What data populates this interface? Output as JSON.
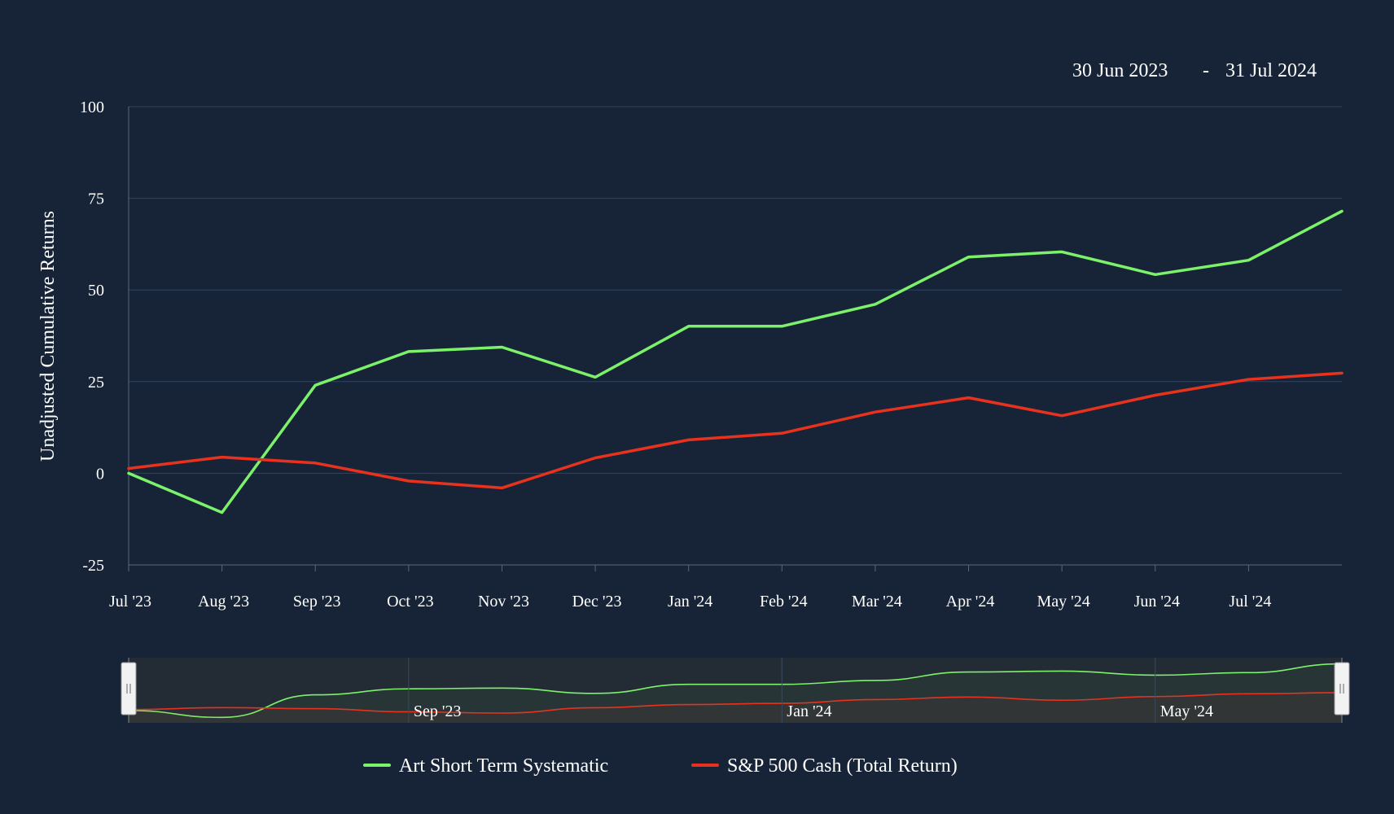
{
  "range_selector": {
    "start": "30 Jun 2023",
    "separator": "-",
    "end": "31 Jul 2024"
  },
  "chart_data": {
    "type": "line",
    "title": "",
    "xlabel": "",
    "ylabel": "Unadjusted Cumulative Returns",
    "ylim": [
      -25,
      100
    ],
    "yticks": [
      -25,
      0,
      25,
      50,
      75,
      100
    ],
    "grid": true,
    "legend_position": "bottom",
    "x": [
      "Jun 2023",
      "Jul 2023",
      "Aug 2023",
      "Sep 2023",
      "Oct 2023",
      "Nov 2023",
      "Dec 2023",
      "Jan 2024",
      "Feb 2024",
      "Mar 2024",
      "Apr 2024",
      "May 2024",
      "Jun 2024",
      "Jul 2024"
    ],
    "xtick_labels": [
      "Jul '23",
      "Aug '23",
      "Sep '23",
      "Oct '23",
      "Nov '23",
      "Dec '23",
      "Jan '24",
      "Feb '24",
      "Mar '24",
      "Apr '24",
      "May '24",
      "Jun '24",
      "Jul '24"
    ],
    "series": [
      {
        "name": "Art Short Term Systematic",
        "color": "#7cf26b",
        "values": [
          0,
          -10.7,
          24.0,
          33.2,
          34.4,
          26.2,
          40.1,
          40.1,
          46.1,
          59.0,
          60.4,
          54.2,
          58.1,
          71.5
        ]
      },
      {
        "name": "S&P 500 Cash (Total Return)",
        "color": "#e8321e",
        "values": [
          1.3,
          4.4,
          2.8,
          -2.1,
          -4.0,
          4.2,
          9.1,
          10.9,
          16.7,
          20.6,
          15.7,
          21.3,
          25.6,
          27.3
        ]
      }
    ],
    "navigator": {
      "labels": [
        "Sep '23",
        "Jan '24",
        "May '24"
      ]
    }
  },
  "colors": {
    "background": "#172437",
    "grid": "#2e4460",
    "axis": "#56677f",
    "navigator_fill": "#232c35",
    "handle": "#f2f2f2"
  }
}
